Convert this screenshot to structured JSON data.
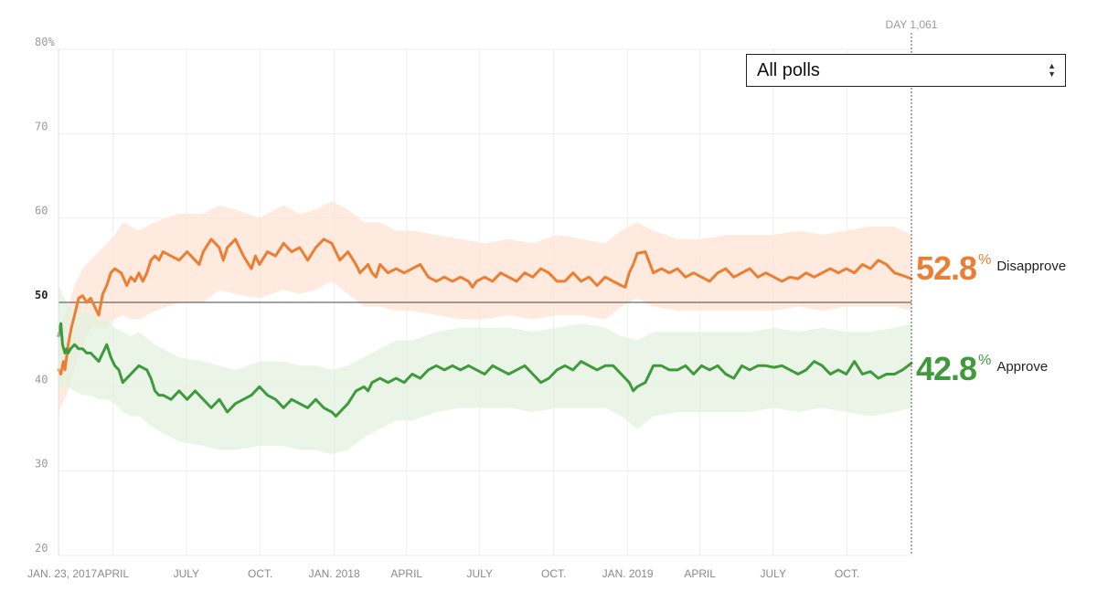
{
  "colors": {
    "disapprove": "#ed7d31",
    "approve": "#3f9a3c",
    "disapprove_band": "#fde3d3",
    "approve_band": "#e3f1df",
    "grid": "#eeeeee"
  },
  "selector": {
    "value": "All polls",
    "icon": "updown-arrows-icon"
  },
  "day_marker": {
    "label": "DAY 1,061",
    "day": 1061
  },
  "final_values": {
    "disapprove": {
      "value": "52.8",
      "pct": "%",
      "label": "Disapprove"
    },
    "approve": {
      "value": "42.8",
      "pct": "%",
      "label": "Approve"
    }
  },
  "chart_data": {
    "type": "line",
    "title": "",
    "xlabel": "",
    "ylabel": "",
    "ylim": [
      20,
      80
    ],
    "xlim": [
      0,
      1061
    ],
    "reference_line": 50,
    "y_ticks": [
      {
        "value": 80,
        "label": "80%"
      },
      {
        "value": 70,
        "label": "70"
      },
      {
        "value": 60,
        "label": "60"
      },
      {
        "value": 50,
        "label": "50"
      },
      {
        "value": 40,
        "label": "40"
      },
      {
        "value": 30,
        "label": "30"
      },
      {
        "value": 20,
        "label": "20"
      }
    ],
    "x_ticks": [
      {
        "day": 0,
        "label": "JAN. 23, 2017"
      },
      {
        "day": 68,
        "label": "APRIL"
      },
      {
        "day": 159,
        "label": "JULY"
      },
      {
        "day": 251,
        "label": "OCT."
      },
      {
        "day": 343,
        "label": "JAN. 2018"
      },
      {
        "day": 433,
        "label": "APRIL"
      },
      {
        "day": 524,
        "label": "JULY"
      },
      {
        "day": 616,
        "label": "OCT."
      },
      {
        "day": 708,
        "label": "JAN. 2019"
      },
      {
        "day": 798,
        "label": "APRIL"
      },
      {
        "day": 889,
        "label": "JULY"
      },
      {
        "day": 981,
        "label": "OCT."
      }
    ],
    "series": [
      {
        "name": "Disapprove",
        "x": [
          0,
          3,
          6,
          8,
          12,
          16,
          20,
          25,
          30,
          35,
          40,
          45,
          50,
          55,
          60,
          65,
          70,
          78,
          85,
          90,
          95,
          100,
          105,
          110,
          115,
          120,
          125,
          130,
          140,
          150,
          160,
          170,
          175,
          180,
          190,
          200,
          205,
          210,
          220,
          230,
          240,
          245,
          250,
          260,
          270,
          280,
          290,
          300,
          310,
          320,
          330,
          340,
          345,
          350,
          360,
          370,
          375,
          380,
          385,
          390,
          395,
          400,
          410,
          420,
          430,
          440,
          450,
          460,
          470,
          480,
          490,
          500,
          510,
          515,
          520,
          530,
          540,
          550,
          560,
          570,
          580,
          590,
          600,
          610,
          620,
          630,
          640,
          650,
          660,
          670,
          680,
          690,
          700,
          705,
          710,
          715,
          720,
          730,
          740,
          750,
          760,
          770,
          780,
          790,
          800,
          810,
          820,
          830,
          840,
          850,
          860,
          870,
          880,
          890,
          900,
          910,
          920,
          930,
          940,
          950,
          960,
          970,
          980,
          990,
          1000,
          1010,
          1020,
          1030,
          1040,
          1050,
          1061
        ],
        "values": [
          42,
          41.5,
          43,
          42,
          45,
          47,
          48.5,
          50.5,
          50.8,
          50,
          50.5,
          49.5,
          48.5,
          51,
          52,
          53.5,
          54,
          53.5,
          52,
          53,
          52.5,
          53.5,
          52.5,
          53.5,
          55,
          55.5,
          55,
          56,
          55.5,
          55,
          56,
          55,
          54.5,
          56,
          57.5,
          56.5,
          55,
          56.5,
          57.5,
          55.5,
          54,
          55.5,
          54.5,
          56,
          55.5,
          57,
          56,
          56.5,
          55,
          56.5,
          57.5,
          57,
          56,
          55,
          56,
          54.5,
          53.5,
          54,
          54.5,
          53.5,
          53,
          54.5,
          53.5,
          54,
          53.5,
          54,
          54.5,
          53,
          52.5,
          53,
          52.5,
          53,
          52.5,
          51.8,
          52.5,
          53,
          52.5,
          53.5,
          53,
          52.5,
          53.5,
          53,
          54,
          53.5,
          52.5,
          52.5,
          53.5,
          52.5,
          53,
          52,
          53,
          52.5,
          52,
          51.8,
          53.5,
          54.5,
          55.8,
          56,
          53.5,
          54,
          53.5,
          54,
          53,
          53.5,
          53,
          52.5,
          53.5,
          54,
          53,
          53.5,
          54,
          53,
          53.5,
          53,
          52.5,
          53,
          52.8,
          53.5,
          53,
          53.5,
          54,
          53.5,
          54,
          53.5,
          54.5,
          54,
          55,
          54.5,
          53.5,
          53.2,
          52.8
        ]
      },
      {
        "name": "Approve",
        "x": [
          0,
          3,
          5,
          8,
          10,
          12,
          15,
          20,
          25,
          30,
          35,
          40,
          45,
          50,
          55,
          60,
          65,
          70,
          75,
          80,
          90,
          100,
          110,
          115,
          120,
          125,
          130,
          140,
          150,
          160,
          170,
          180,
          190,
          200,
          210,
          220,
          230,
          240,
          250,
          260,
          270,
          280,
          290,
          300,
          310,
          320,
          330,
          340,
          345,
          350,
          360,
          370,
          380,
          385,
          390,
          400,
          410,
          420,
          430,
          440,
          450,
          460,
          470,
          480,
          490,
          500,
          510,
          520,
          530,
          540,
          550,
          560,
          570,
          580,
          590,
          600,
          610,
          620,
          630,
          640,
          650,
          660,
          670,
          680,
          690,
          700,
          710,
          715,
          720,
          730,
          740,
          750,
          760,
          770,
          780,
          790,
          800,
          810,
          820,
          830,
          840,
          850,
          860,
          870,
          880,
          890,
          900,
          910,
          920,
          930,
          940,
          950,
          960,
          970,
          980,
          990,
          1000,
          1010,
          1020,
          1030,
          1040,
          1050,
          1061
        ],
        "values": [
          46,
          47.5,
          45,
          44,
          44.5,
          44,
          44.5,
          45,
          44.5,
          44.5,
          44,
          44,
          43.5,
          43,
          44,
          45,
          43.5,
          42.5,
          42,
          40.5,
          41.5,
          42.5,
          42,
          41,
          39.5,
          39,
          39,
          38.5,
          39.5,
          38.5,
          39.5,
          38.5,
          37.5,
          38.5,
          37,
          38,
          38.5,
          39,
          40,
          39,
          38.5,
          37.5,
          38.5,
          38,
          37.5,
          38.5,
          37.5,
          37,
          36.5,
          37,
          38,
          39.5,
          40,
          39.5,
          40.5,
          41,
          40.5,
          41,
          40.5,
          41.5,
          41,
          42,
          42.5,
          42,
          42.5,
          42,
          42.5,
          42,
          41.5,
          42.5,
          42,
          41.5,
          42,
          42.5,
          41.5,
          40.5,
          41,
          42,
          42.5,
          42,
          43,
          42.5,
          42,
          42.5,
          42.5,
          41.5,
          40.5,
          39.5,
          40,
          40.5,
          42.5,
          42.5,
          42,
          42,
          42.5,
          41.5,
          42.5,
          42,
          42.5,
          41.5,
          41,
          42.5,
          42,
          42.5,
          42.5,
          42.3,
          42.5,
          42,
          41.5,
          42,
          43,
          42.5,
          41.5,
          42,
          41.5,
          43,
          41.5,
          41.8,
          41,
          41.5,
          41.5,
          42,
          42.8
        ]
      }
    ],
    "bands": [
      {
        "name": "Disapprove range",
        "x": [
          0,
          10,
          20,
          30,
          40,
          50,
          60,
          70,
          80,
          90,
          100,
          120,
          150,
          180,
          200,
          220,
          250,
          280,
          300,
          320,
          340,
          360,
          380,
          400,
          420,
          440,
          470,
          500,
          530,
          560,
          590,
          620,
          650,
          680,
          700,
          720,
          740,
          770,
          800,
          830,
          860,
          890,
          920,
          950,
          980,
          1010,
          1040,
          1061
        ],
        "upper": [
          47,
          49,
          52,
          54,
          55,
          56,
          57,
          58,
          59.5,
          59,
          58.5,
          59.5,
          60.5,
          60.5,
          61.5,
          61,
          60,
          61.5,
          60.5,
          61,
          62,
          61,
          59.5,
          59.5,
          58.5,
          58.5,
          58,
          57.5,
          57,
          57.5,
          57,
          58,
          57.5,
          57,
          58.5,
          59.5,
          58.5,
          57.5,
          57.5,
          58,
          58,
          58,
          58.5,
          58,
          58.5,
          59,
          59,
          58
        ],
        "lower": [
          37,
          39,
          42,
          45,
          47,
          47,
          47,
          48,
          48.5,
          48,
          48,
          49,
          50,
          50,
          51.5,
          51,
          50.5,
          51.5,
          51,
          51.5,
          52.5,
          51,
          49.5,
          49.5,
          49,
          49,
          48.5,
          48,
          48,
          48.5,
          48,
          48.5,
          48.5,
          48,
          49.5,
          50.5,
          49.5,
          49,
          49,
          49,
          49,
          49,
          49.5,
          49,
          49.5,
          49.5,
          49.5,
          49
        ]
      },
      {
        "name": "Approve range",
        "x": [
          0,
          10,
          20,
          30,
          40,
          50,
          60,
          70,
          80,
          90,
          100,
          120,
          150,
          180,
          200,
          220,
          250,
          280,
          300,
          320,
          340,
          360,
          380,
          400,
          420,
          440,
          470,
          500,
          530,
          560,
          590,
          620,
          650,
          680,
          700,
          720,
          740,
          770,
          800,
          830,
          860,
          890,
          920,
          950,
          980,
          1010,
          1040,
          1061
        ],
        "upper": [
          52,
          50,
          49,
          49,
          48.5,
          48,
          48,
          47,
          46.5,
          46,
          46.5,
          45,
          43.5,
          43,
          42.5,
          42,
          43,
          43,
          42.5,
          42.5,
          42,
          42.5,
          43.5,
          44.5,
          45.5,
          45.5,
          46.5,
          47,
          47,
          47,
          46.5,
          47,
          47.5,
          47,
          46,
          45.5,
          46.5,
          46.5,
          46.5,
          46.5,
          46.5,
          47,
          46.5,
          47,
          46.5,
          46.5,
          47,
          47.5
        ],
        "lower": [
          40,
          40,
          39.5,
          39,
          39,
          38.5,
          38.5,
          38,
          37,
          36.5,
          36.5,
          35,
          33.5,
          33,
          32.5,
          32.5,
          33,
          33,
          32.5,
          32.5,
          32,
          32.5,
          34,
          35,
          36,
          36,
          37,
          37.5,
          37.5,
          37.5,
          37,
          37.5,
          37.5,
          37.5,
          36.5,
          35,
          36.5,
          37,
          37,
          37,
          37,
          37.5,
          37,
          37.5,
          37,
          36.5,
          37,
          37.5
        ]
      }
    ]
  }
}
